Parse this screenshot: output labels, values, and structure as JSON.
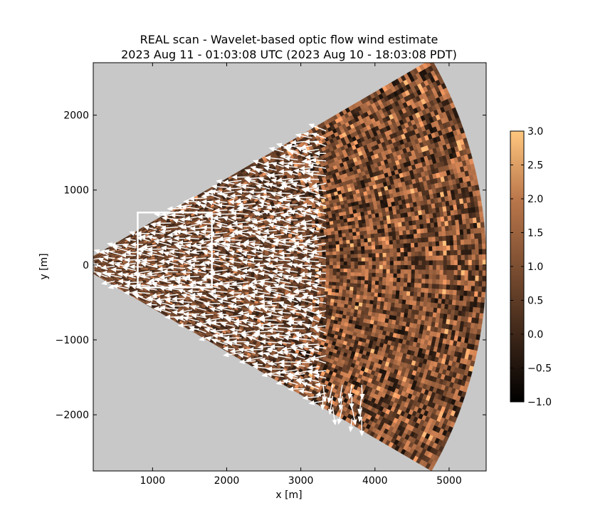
{
  "chart_data": {
    "type": "heatmap",
    "title_line1": "REAL scan - Wavelet-based optic flow wind estimate",
    "title_line2": "2023 Aug 11 - 01:03:08 UTC (2023 Aug 10 - 18:03:08 PDT)",
    "xlabel": "x [m]",
    "ylabel": "y [m]",
    "xlim": [
      200,
      5500
    ],
    "ylim": [
      -2750,
      2700
    ],
    "xticks": [
      1000,
      2000,
      3000,
      4000,
      5000
    ],
    "yticks": [
      -2000,
      -1000,
      0,
      1000,
      2000
    ],
    "xtick_labels": [
      "1000",
      "2000",
      "3000",
      "4000",
      "5000"
    ],
    "ytick_labels": [
      "−2000",
      "−1000",
      "0",
      "1000",
      "2000"
    ],
    "scan_sector": {
      "origin": [
        0,
        0
      ],
      "r_min": 220,
      "r_max": 5500,
      "theta_min_deg": -30,
      "theta_max_deg": 30
    },
    "background_color": "#c8c8c8",
    "colormap": "copper",
    "colorbar": {
      "min": -1.0,
      "max": 3.0,
      "ticks": [
        3.0,
        2.5,
        2.0,
        1.5,
        1.0,
        0.5,
        0.0,
        -0.5,
        -1.0
      ],
      "tick_labels": [
        "3.0",
        "2.5",
        "2.0",
        "1.5",
        "1.0",
        "0.5",
        "0.0",
        "−0.5",
        "−1.0"
      ]
    },
    "roi_box": {
      "x": [
        800,
        1800
      ],
      "y": [
        -300,
        700
      ],
      "color": "#ffffff"
    },
    "vector_field": {
      "color": "#ffffff",
      "extent_x": [
        300,
        3900
      ],
      "dominant_direction": "westward",
      "southward_cluster": {
        "x": [
          3300,
          3900
        ],
        "y": [
          -2200,
          -1500
        ]
      }
    }
  }
}
